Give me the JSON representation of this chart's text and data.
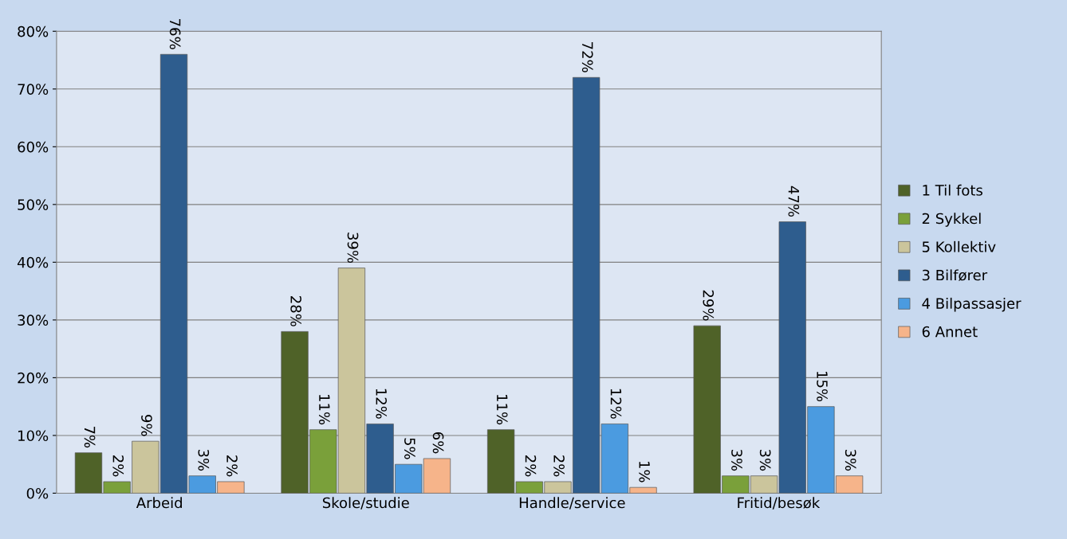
{
  "chart_data": {
    "type": "bar",
    "categories": [
      "Arbeid",
      "Skole/studie",
      "Handle/service",
      "Fritid/besøk"
    ],
    "series": [
      {
        "name": "1 Til fots",
        "color": "#4f6228",
        "values": [
          7,
          28,
          11,
          29
        ],
        "value_labels": [
          "7%",
          "28%",
          "11%",
          "29%"
        ]
      },
      {
        "name": "2 Sykkel",
        "color": "#7aa03a",
        "values": [
          2,
          11,
          2,
          3
        ],
        "value_labels": [
          "2%",
          "11%",
          "2%",
          "3%"
        ]
      },
      {
        "name": "5 Kollektiv",
        "color": "#cbc59c",
        "values": [
          9,
          39,
          2,
          3
        ],
        "value_labels": [
          "9%",
          "39%",
          "2%",
          "3%"
        ]
      },
      {
        "name": "3 Bilfører",
        "color": "#2e5d8e",
        "values": [
          76,
          12,
          72,
          47
        ],
        "value_labels": [
          "76%",
          "12%",
          "72%",
          "47%"
        ]
      },
      {
        "name": "4 Bilpassasjer",
        "color": "#4b9be0",
        "values": [
          3,
          5,
          12,
          15
        ],
        "value_labels": [
          "3%",
          "5%",
          "12%",
          "15%"
        ]
      },
      {
        "name": "6 Annet",
        "color": "#f6b48a",
        "values": [
          2,
          6,
          1,
          3
        ],
        "value_labels": [
          "2%",
          "6%",
          "1%",
          "3%"
        ]
      }
    ],
    "ylim": [
      0,
      80
    ],
    "yticks": [
      {
        "value": 0,
        "label": "0%"
      },
      {
        "value": 10,
        "label": "10%"
      },
      {
        "value": 20,
        "label": "20%"
      },
      {
        "value": 30,
        "label": "30%"
      },
      {
        "value": 40,
        "label": "40%"
      },
      {
        "value": 50,
        "label": "50%"
      },
      {
        "value": 60,
        "label": "60%"
      },
      {
        "value": 70,
        "label": "70%"
      },
      {
        "value": 80,
        "label": "80%"
      }
    ],
    "grid": "y",
    "legend": "right"
  }
}
